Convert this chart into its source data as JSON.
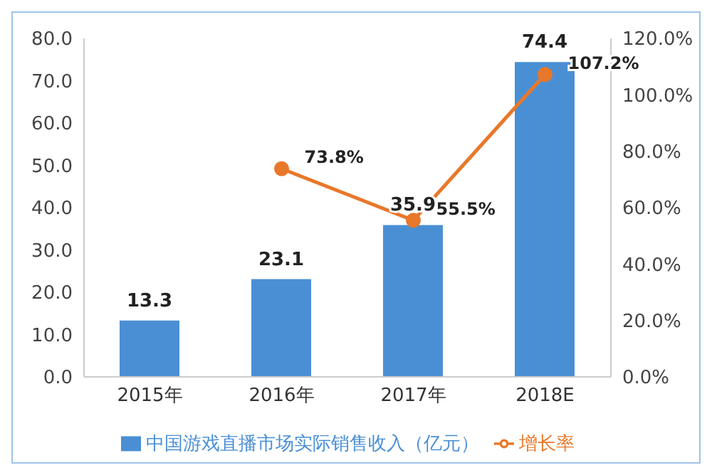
{
  "chart_data": {
    "type": "bar",
    "categories": [
      "2015年",
      "2016年",
      "2017年",
      "2018E"
    ],
    "series": [
      {
        "name": "中国游戏直播市场实际销售收入（亿元）",
        "color": "#4a8fd4",
        "values": [
          13.3,
          23.1,
          35.9,
          74.4
        ],
        "value_labels": [
          "13.3",
          "23.1",
          "35.9",
          "74.4"
        ]
      },
      {
        "name": "增长率",
        "type": "line",
        "axis": "y2",
        "color": "#e8782a",
        "values": [
          null,
          73.8,
          55.5,
          107.2
        ],
        "value_labels": [
          null,
          "73.8%",
          "55.5%",
          "107.2%"
        ],
        "marker": "circle"
      }
    ],
    "ylim": [
      0,
      80
    ],
    "yticks": [
      {
        "value": 0,
        "label": "0.0"
      },
      {
        "value": 10,
        "label": "10.0"
      },
      {
        "value": 20,
        "label": "20.0"
      },
      {
        "value": 30,
        "label": "30.0"
      },
      {
        "value": 40,
        "label": "40.0"
      },
      {
        "value": 50,
        "label": "50.0"
      },
      {
        "value": 60,
        "label": "60.0"
      },
      {
        "value": 70,
        "label": "70.0"
      },
      {
        "value": 80,
        "label": "80.0"
      }
    ],
    "y2lim": [
      0,
      120
    ],
    "y2ticks": [
      {
        "value": 0,
        "label": "0.0%"
      },
      {
        "value": 20,
        "label": "20.0%"
      },
      {
        "value": 40,
        "label": "40.0%"
      },
      {
        "value": 60,
        "label": "60.0%"
      },
      {
        "value": 80,
        "label": "80.0%"
      },
      {
        "value": 100,
        "label": "100.0%"
      },
      {
        "value": 120,
        "label": "120.0%"
      }
    ],
    "grid": false,
    "legend": "bottom"
  }
}
